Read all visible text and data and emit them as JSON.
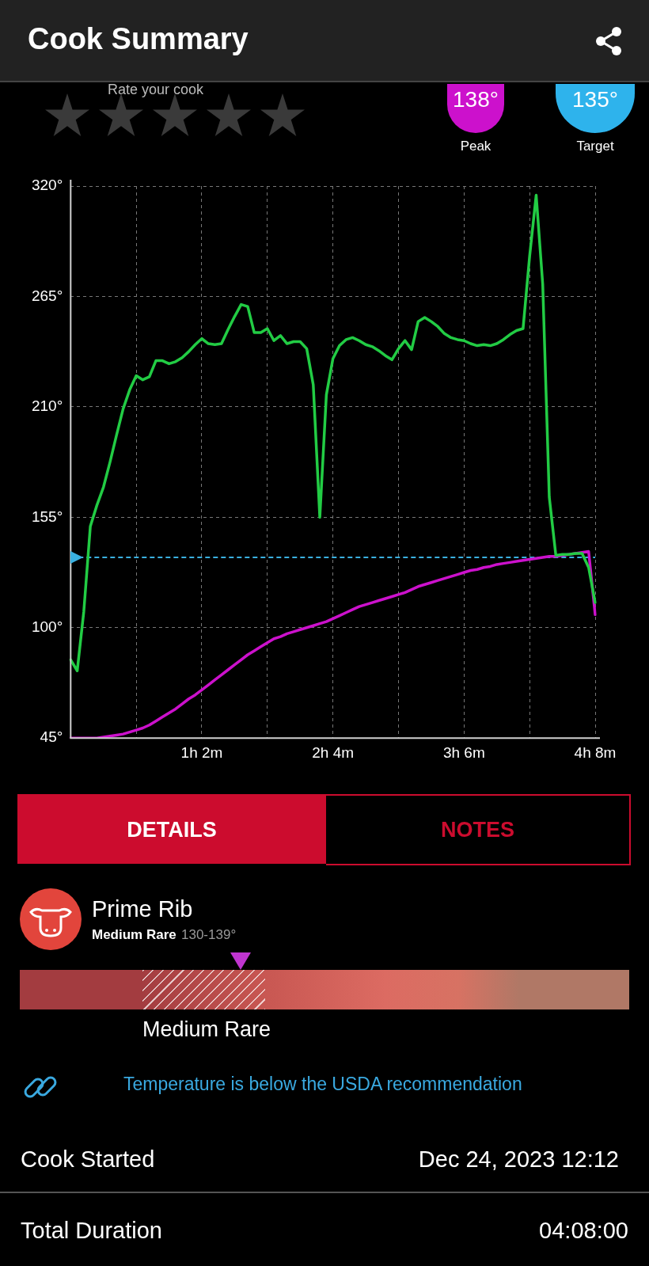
{
  "chart_data": {
    "type": "line",
    "title": "Cook Summary",
    "categories": [
      null,
      null,
      null,
      null,
      null,
      null,
      null,
      null,
      null,
      null,
      null,
      null,
      null,
      null,
      null,
      null,
      null,
      null,
      null,
      null,
      "1h 2m",
      null,
      null,
      null,
      null,
      null,
      null,
      null,
      null,
      null,
      null,
      null,
      null,
      null,
      null,
      null,
      null,
      null,
      null,
      null,
      "2h 4m",
      null,
      null,
      null,
      null,
      null,
      null,
      null,
      null,
      null,
      null,
      null,
      null,
      null,
      null,
      null,
      null,
      null,
      null,
      null,
      "3h 6m",
      null,
      null,
      null,
      null,
      null,
      null,
      null,
      null,
      null,
      null,
      null,
      null,
      null,
      null,
      null,
      null,
      null,
      null,
      null,
      "4h 8m"
    ],
    "series": [
      {
        "color": "#22cc44",
        "values": [
          84,
          78.5,
          108,
          150.5,
          161,
          170,
          182.5,
          196,
          209,
          218.5,
          225.5,
          223.5,
          225,
          233,
          233,
          231.5,
          232.5,
          234.5,
          237.5,
          241,
          244,
          241.5,
          241,
          241.5,
          248.5,
          255,
          261,
          260,
          247,
          247,
          249,
          243,
          245.5,
          241.5,
          242.5,
          242.5,
          239,
          221,
          155,
          216,
          234,
          240.5,
          243.5,
          244.5,
          243,
          241,
          240,
          238,
          235.5,
          233.5,
          239,
          243,
          238.5,
          252.5,
          254.5,
          252.5,
          250,
          246.5,
          244.5,
          243.5,
          243,
          241.5,
          240.5,
          241,
          240.5,
          241.5,
          243.5,
          246,
          248,
          249,
          285,
          315.5,
          271,
          165,
          136,
          136.5,
          136.5,
          137,
          137,
          130,
          112.5
        ]
      },
      {
        "color": "#cc11cc",
        "values": [
          45,
          45,
          45,
          45,
          45,
          45.5,
          46,
          46.5,
          47,
          48,
          49,
          50,
          51.5,
          53.5,
          55.5,
          57.5,
          59.5,
          62,
          64.5,
          66.5,
          69,
          71.5,
          74,
          76.5,
          79,
          81.5,
          84,
          86.5,
          88.5,
          90.5,
          92.5,
          94.5,
          95.5,
          97,
          98,
          99,
          100,
          101,
          102,
          103,
          104.5,
          106,
          107.5,
          109,
          110.5,
          111.5,
          112.5,
          113.5,
          114.5,
          115.5,
          116.5,
          117.5,
          119,
          120.5,
          121.5,
          122.5,
          123.5,
          124.5,
          125.5,
          126.5,
          127.5,
          128.5,
          129,
          130,
          130.5,
          131.5,
          132,
          132.5,
          133,
          133.5,
          134,
          134.5,
          135,
          135.5,
          135.5,
          136,
          136.5,
          137,
          137.5,
          138,
          106.5
        ]
      }
    ],
    "ylim": [
      45,
      320
    ],
    "yticks": [
      {
        "value": 45,
        "label": "45°"
      },
      {
        "value": 100,
        "label": "100°"
      },
      {
        "value": 155,
        "label": "155°"
      },
      {
        "value": 210,
        "label": "210°"
      },
      {
        "value": 265,
        "label": "265°"
      },
      {
        "value": 320,
        "label": "320°"
      }
    ],
    "ref_lines": [
      {
        "axis": "y",
        "value": 135,
        "color": "#3ab0e0",
        "line_style": "dashed"
      }
    ],
    "grid": true,
    "legend": false,
    "marker": "none",
    "line_style": "solid",
    "annotations": [
      "Rate your cook",
      "138°",
      "Peak",
      "135°",
      "Target",
      "DETAILS",
      "NOTES",
      "Prime Rib",
      "Medium Rare",
      "130-139°",
      "Medium Rare",
      "Temperature is below the USDA recommendation",
      "Cook Started",
      "Dec 24, 2023 12:12",
      "Total Duration",
      "04:08:00"
    ]
  }
}
